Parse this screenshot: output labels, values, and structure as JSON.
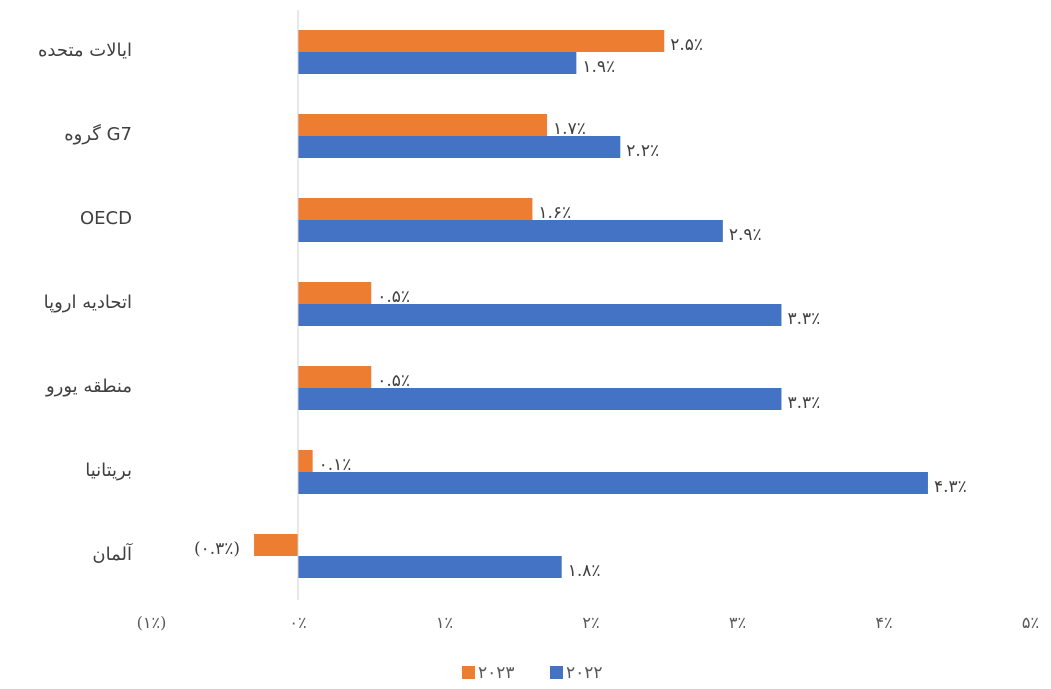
{
  "chart_data": {
    "type": "bar",
    "orientation": "horizontal",
    "categories": [
      "ایالات متحده",
      "گروه G7",
      "OECD",
      "اتحادیه اروپا",
      "منطقه یورو",
      "بریتانیا",
      "آلمان"
    ],
    "series": [
      {
        "name": "۲۰۲۳",
        "color": "#ED7D31",
        "values": [
          2.5,
          1.7,
          1.6,
          0.5,
          0.5,
          0.1,
          -0.3
        ],
        "labels": [
          "۲.۵٪",
          "۱.۷٪",
          "۱.۶٪",
          "۰.۵٪",
          "۰.۵٪",
          "۰.۱٪",
          "(۰.۳٪)"
        ]
      },
      {
        "name": "۲۰۲۲",
        "color": "#4472C4",
        "values": [
          1.9,
          2.2,
          2.9,
          3.3,
          3.3,
          4.3,
          1.8
        ],
        "labels": [
          "۱.۹٪",
          "۲.۲٪",
          "۲.۹٪",
          "۳.۳٪",
          "۳.۳٪",
          "۴.۳٪",
          "۱.۸٪"
        ]
      }
    ],
    "xlim": [
      -1,
      5
    ],
    "x_ticks": [
      -1,
      0,
      1,
      2,
      3,
      4,
      5
    ],
    "x_tick_labels": [
      "(۱٪)",
      "۰٪",
      "۱٪",
      "۲٪",
      "۳٪",
      "۴٪",
      "۵٪"
    ],
    "negative_label_color": "#C00000",
    "grid": false,
    "legend_position": "bottom"
  }
}
